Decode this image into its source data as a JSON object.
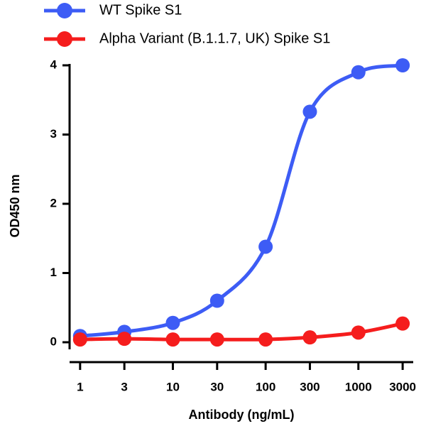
{
  "chart_data": {
    "type": "line",
    "x_label": "Antibody (ng/mL)",
    "y_label": "OD450 nm",
    "x": [
      1,
      3,
      10,
      30,
      100,
      300,
      1000,
      3000
    ],
    "xlim": [
      0.77,
      3900
    ],
    "xticks": [
      1,
      3,
      10,
      30,
      100,
      300,
      1000,
      3000
    ],
    "xscale": "log",
    "ylim": [
      0,
      4
    ],
    "yticks": [
      0,
      1,
      2,
      3,
      4
    ],
    "legend": "top",
    "series": [
      {
        "name": "WT Spike S1",
        "color": "#3d5cf5",
        "values": [
          0.09,
          0.15,
          0.28,
          0.6,
          1.38,
          3.33,
          3.9,
          4.0
        ]
      },
      {
        "name": "Alpha Variant (B.1.1.7, UK) Spike S1",
        "color": "#f51d1d",
        "values": [
          0.04,
          0.05,
          0.04,
          0.04,
          0.04,
          0.07,
          0.14,
          0.27
        ]
      }
    ]
  }
}
